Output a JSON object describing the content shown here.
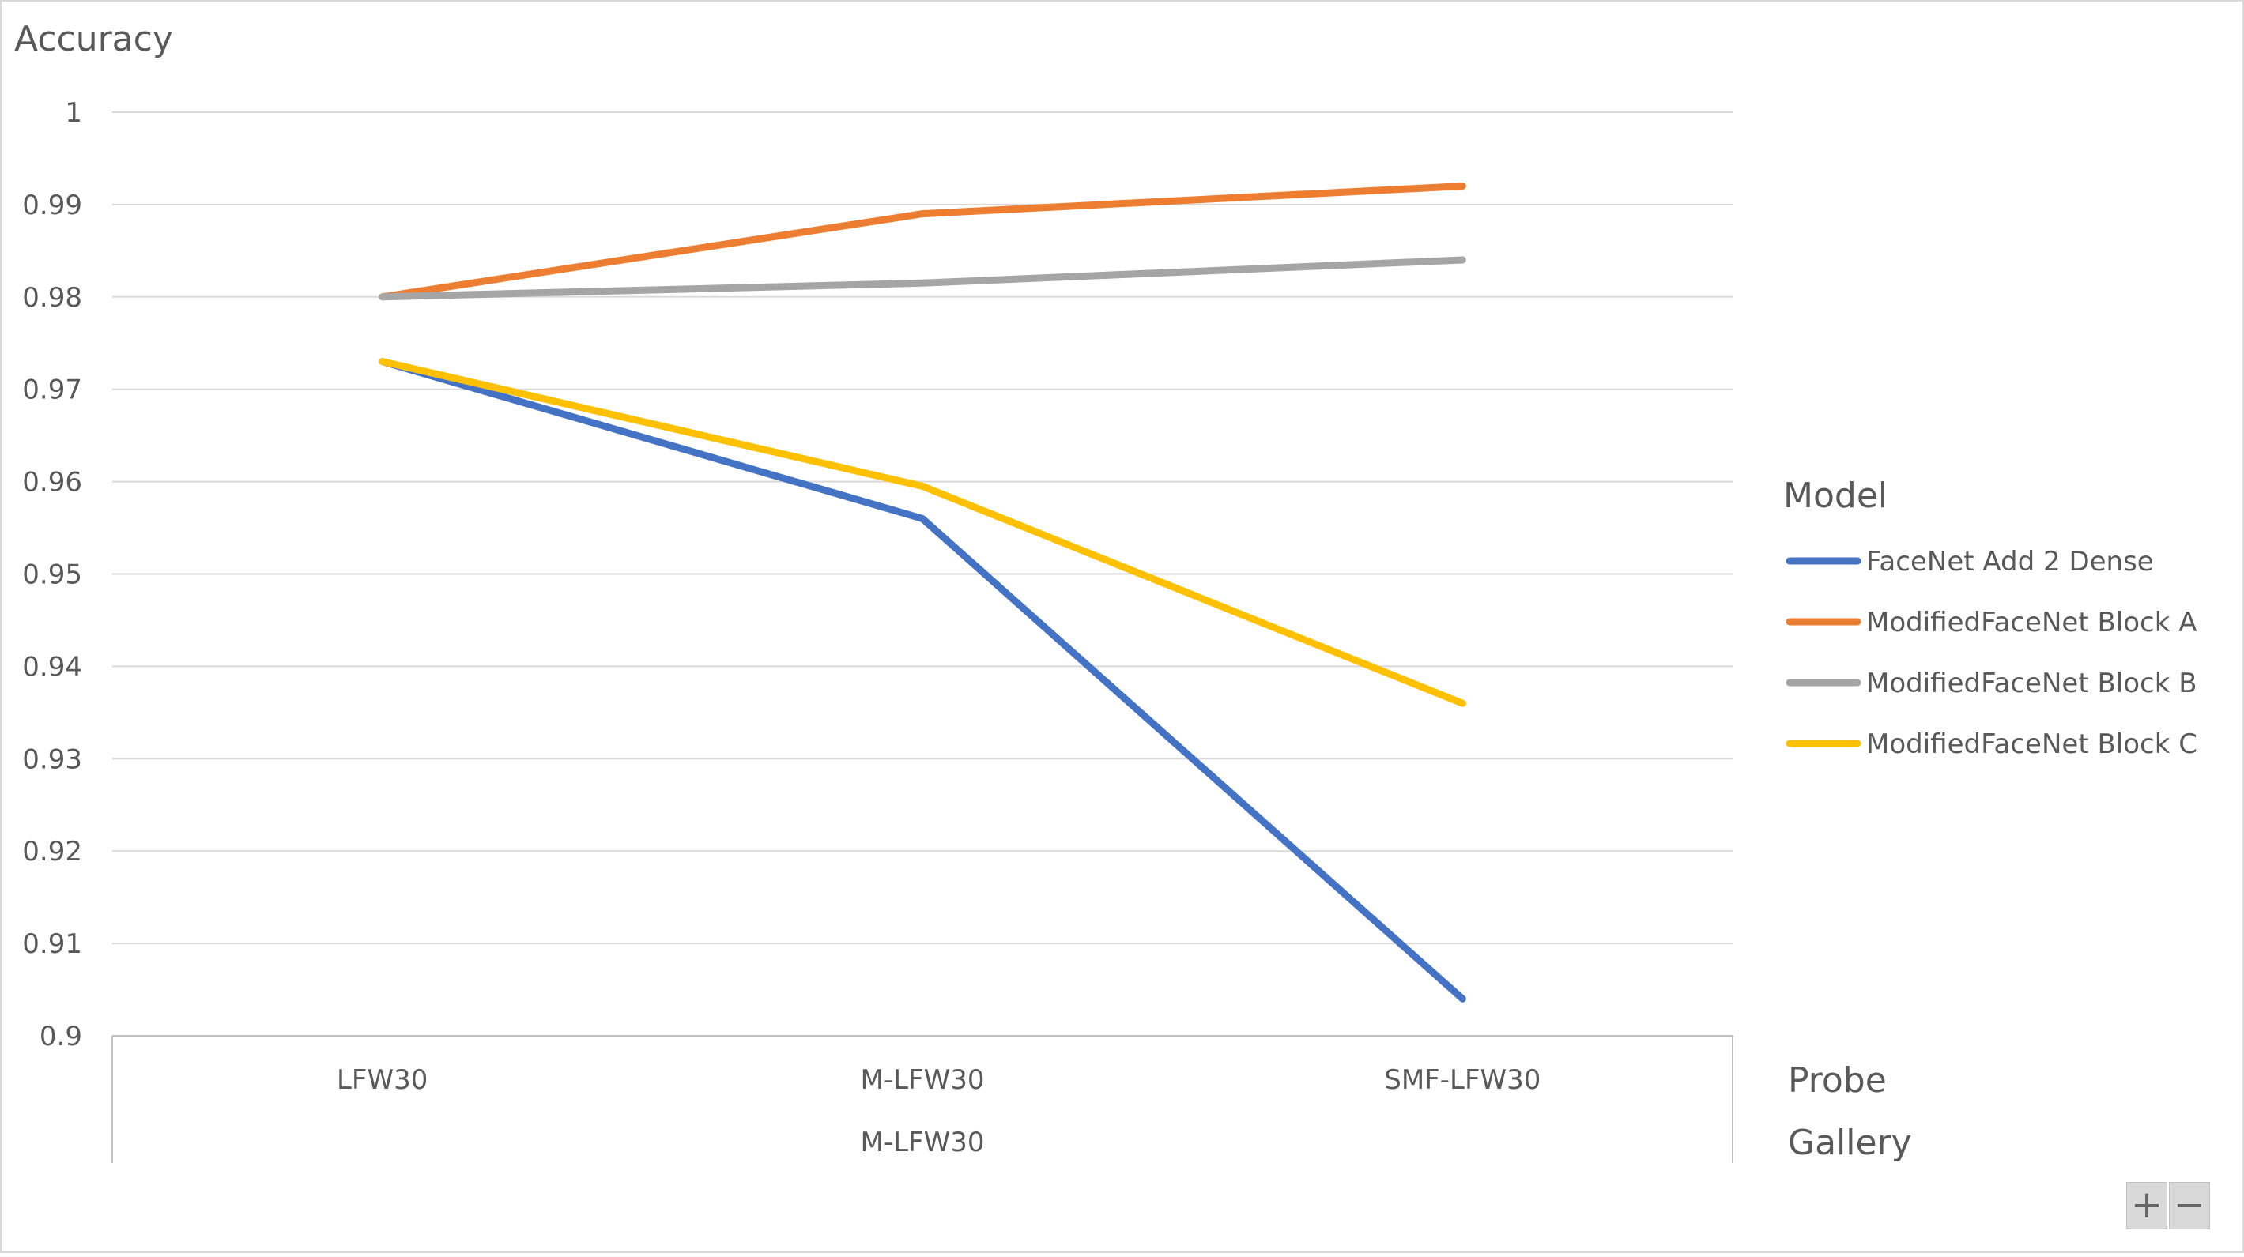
{
  "chart_data": {
    "type": "line",
    "ylabel": "Accuracy",
    "ylim": [
      0.9,
      1.0
    ],
    "yticks": [
      "1",
      "0.99",
      "0.98",
      "0.97",
      "0.96",
      "0.95",
      "0.94",
      "0.93",
      "0.92",
      "0.91",
      "0.9"
    ],
    "categories": [
      "LFW30",
      "M-LFW30",
      "SMF-LFW30"
    ],
    "group_label": "M-LFW30",
    "x_field_labels": [
      "Probe",
      "Gallery"
    ],
    "legend": {
      "title": "Model",
      "placement": "right"
    },
    "grid": true,
    "series": [
      {
        "name": "FaceNet Add 2 Dense",
        "color": "#4472C4",
        "values": [
          0.973,
          0.956,
          0.904
        ]
      },
      {
        "name": "ModifiedFaceNet Block A",
        "color": "#ED7D31",
        "values": [
          0.98,
          0.989,
          0.992
        ]
      },
      {
        "name": "ModifiedFaceNet Block B",
        "color": "#A5A5A5",
        "values": [
          0.98,
          0.9815,
          0.984
        ]
      },
      {
        "name": "ModifiedFaceNet Block C",
        "color": "#FFC000",
        "values": [
          0.973,
          0.9595,
          0.936
        ]
      }
    ]
  },
  "controls": {
    "zoom_in_label": "+",
    "zoom_out_label": "−"
  }
}
